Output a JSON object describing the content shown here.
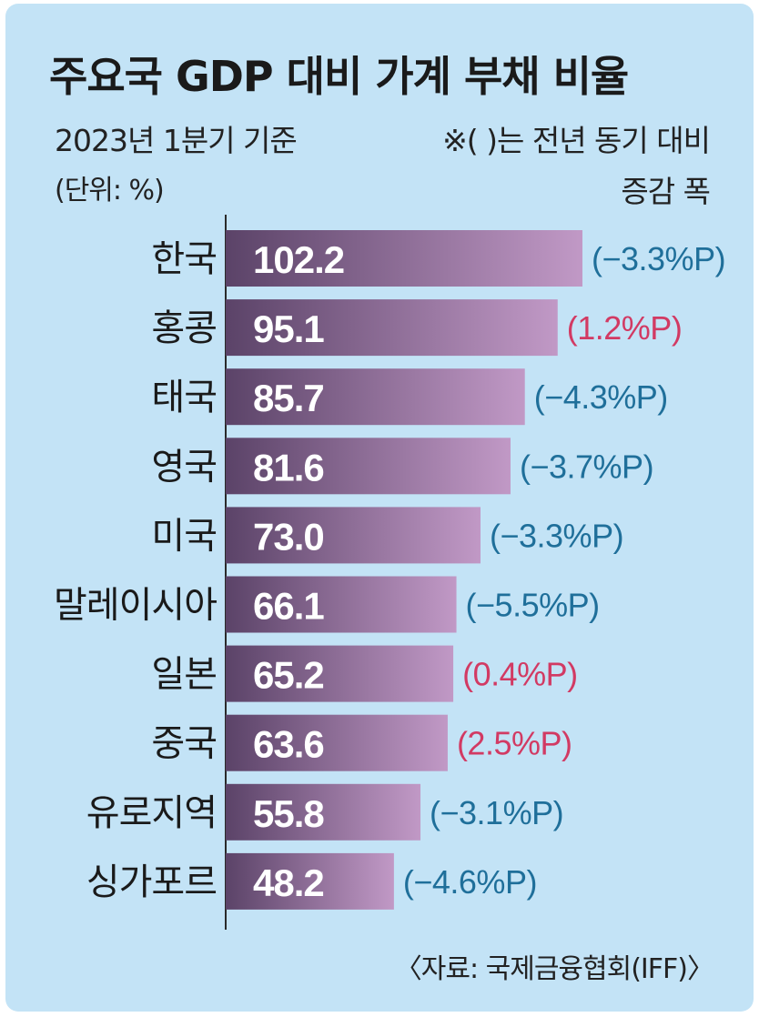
{
  "chart_data": {
    "type": "bar",
    "orientation": "horizontal",
    "title": "주요국 GDP 대비 가계 부채 비율",
    "subtitle": "2023년 1분기 기준",
    "unit": "(단위: %)",
    "note_line1": "※(   )는 전년 동기 대비",
    "note_line2": "증감 폭",
    "source": "〈자료: 국제금융협회(IFF)〉",
    "xlim": [
      0,
      102.2
    ],
    "categories": [
      "한국",
      "홍콩",
      "태국",
      "영국",
      "미국",
      "말레이시아",
      "일본",
      "중국",
      "유로지역",
      "싱가포르"
    ],
    "values": [
      102.2,
      95.1,
      85.7,
      81.6,
      73.0,
      66.1,
      65.2,
      63.6,
      55.8,
      48.2
    ],
    "value_labels": [
      "102.2",
      "95.1",
      "85.7",
      "81.6",
      "73.0",
      "66.1",
      "65.2",
      "63.6",
      "55.8",
      "48.2"
    ],
    "changes": [
      -3.3,
      1.2,
      -4.3,
      -3.7,
      -3.3,
      -5.5,
      0.4,
      2.5,
      -3.1,
      -4.6
    ],
    "change_labels": [
      "(−3.3%P)",
      "(1.2%P)",
      "(−4.3%P)",
      "(−3.7%P)",
      "(−3.3%P)",
      "(−5.5%P)",
      "(0.4%P)",
      "(2.5%P)",
      "(−3.1%P)",
      "(−4.6%P)"
    ],
    "colors": {
      "background": "#c3e3f6",
      "bar_start": "#5b4368",
      "bar_end": "#c199c6",
      "negative": "#1f6f9a",
      "positive": "#d23a63"
    }
  }
}
